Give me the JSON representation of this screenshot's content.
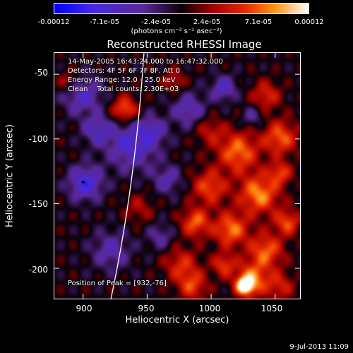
{
  "colorbar": {
    "ticks": [
      "-0.00012",
      "-7.1e-05",
      "-2.4e-05",
      "2.4e-05",
      "7.1e-05",
      "0.00012"
    ],
    "units": "(photons cm⁻² s⁻¹ asec⁻²)",
    "range": [
      -0.00012,
      0.00012
    ]
  },
  "title": "Reconstructed RHESSI Image",
  "info": {
    "time": "14-May-2005 16:43:24.000 to 16:47:32.000",
    "detectors": "Detectors: 4F 5F 6F 7F 8F, Att 0",
    "energy": "Energy Range: 12.0 - 25.0 keV",
    "clean": "Clean    Total counts: 2.30E+03",
    "peak": "Position of Peak = [932,-76]"
  },
  "axes": {
    "xlabel": "Heliocentric X (arcsec)",
    "ylabel": "Heliocentric Y (arcsec)",
    "xlim": [
      877,
      1070
    ],
    "ylim": [
      -224,
      -33
    ],
    "xticks": [
      "900",
      "950",
      "1000",
      "1050"
    ],
    "xtick_values": [
      900,
      950,
      1000,
      1050
    ],
    "yticks": [
      "-50",
      "-100",
      "-150",
      "-200"
    ],
    "ytick_values": [
      -50,
      -100,
      -150,
      -200
    ]
  },
  "stamp": "9-Jul-2013 11:09"
}
